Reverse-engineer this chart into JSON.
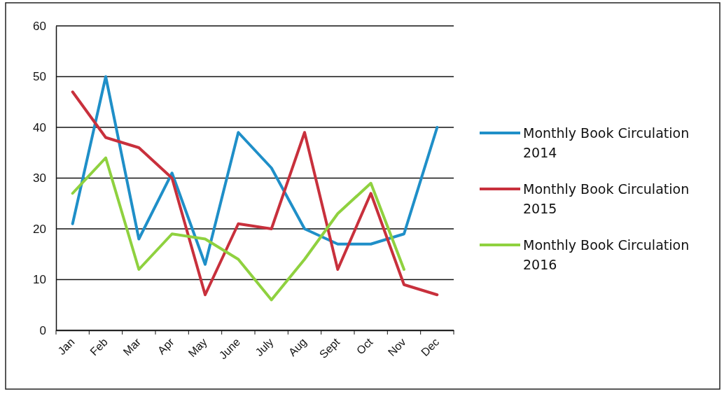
{
  "chart_data": {
    "type": "line",
    "categories": [
      "Jan",
      "Feb",
      "Mar",
      "Apr",
      "May",
      "June",
      "July",
      "Aug",
      "Sept",
      "Oct",
      "Nov",
      "Dec"
    ],
    "series": [
      {
        "name": "Monthly Book Circulation 2014",
        "color": "#1f8fc8",
        "values": [
          21,
          50,
          18,
          31,
          13,
          39,
          32,
          20,
          17,
          17,
          19,
          40
        ]
      },
      {
        "name": "Monthly Book Circulation 2015",
        "color": "#c8303c",
        "values": [
          47,
          38,
          36,
          30,
          7,
          21,
          20,
          39,
          12,
          27,
          9,
          7
        ]
      },
      {
        "name": "Monthly Book Circulation 2016",
        "color": "#8fd13f",
        "values": [
          27,
          34,
          12,
          19,
          18,
          14,
          6,
          14,
          23,
          29,
          12,
          null
        ]
      }
    ],
    "ylim": [
      0,
      60
    ],
    "yticks": [
      0,
      10,
      20,
      30,
      40,
      50,
      60
    ],
    "grid": "y",
    "legend": "right",
    "marker": "none",
    "line_style": "solid"
  }
}
